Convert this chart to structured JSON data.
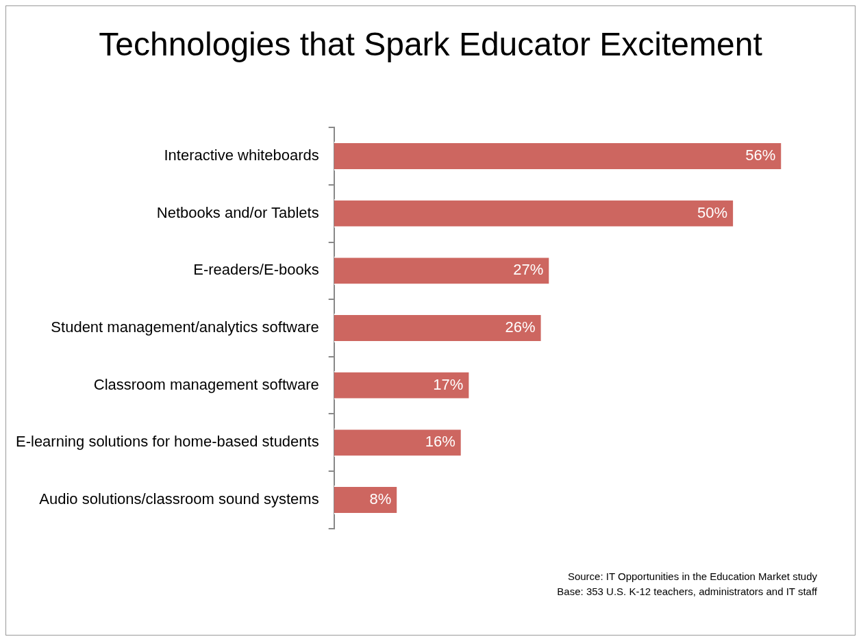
{
  "chart_data": {
    "type": "bar",
    "orientation": "horizontal",
    "title": "Technologies that Spark Educator Excitement",
    "categories": [
      "Interactive whiteboards",
      "Netbooks and/or Tablets",
      "E-readers/E-books",
      "Student management/analytics software",
      "Classroom management software",
      "E-learning solutions for home-based students",
      "Audio solutions/classroom sound systems"
    ],
    "values": [
      56,
      50,
      27,
      26,
      17,
      16,
      8
    ],
    "value_labels": [
      "56%",
      "50%",
      "27%",
      "26%",
      "17%",
      "16%",
      "8%"
    ],
    "color": "#cd6660",
    "legend": false,
    "annotations": [
      "Source: IT Opportunities in the Education Market study",
      "Base: 353 U.S. K-12 teachers, administrators and IT staff"
    ]
  }
}
